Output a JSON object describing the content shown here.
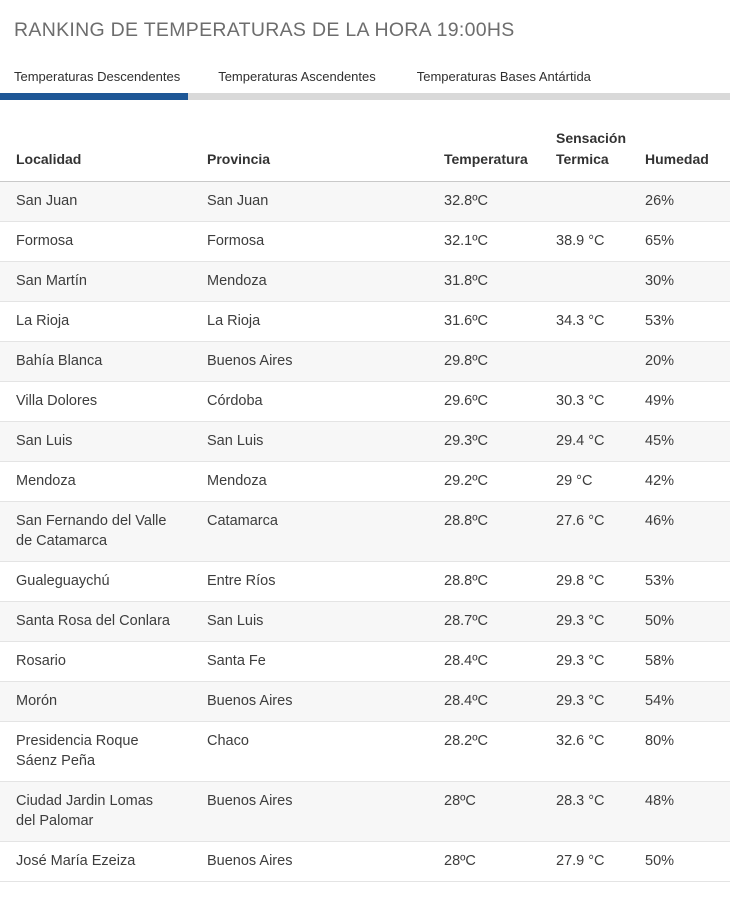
{
  "header": {
    "title": "RANKING DE TEMPERATURAS DE LA HORA 19:00HS"
  },
  "tabs": [
    {
      "label": "Temperaturas Descendentes",
      "active": true
    },
    {
      "label": "Temperaturas Ascendentes",
      "active": false
    },
    {
      "label": "Temperaturas Bases Antártida",
      "active": false
    }
  ],
  "colors": {
    "accent": "#1e5796",
    "tab_track": "#d9d9d9",
    "row_stripe": "#f7f7f7"
  },
  "table": {
    "columns": [
      "Localidad",
      "Provincia",
      "Temperatura",
      "Sensación\nTermica",
      "Humedad"
    ],
    "rows": [
      {
        "localidad": "San Juan",
        "provincia": "San Juan",
        "temperatura": "32.8ºC",
        "sensacion": "",
        "humedad": "26%"
      },
      {
        "localidad": "Formosa",
        "provincia": "Formosa",
        "temperatura": "32.1ºC",
        "sensacion": "38.9 °C",
        "humedad": "65%"
      },
      {
        "localidad": "San Martín",
        "provincia": "Mendoza",
        "temperatura": "31.8ºC",
        "sensacion": "",
        "humedad": "30%"
      },
      {
        "localidad": "La Rioja",
        "provincia": "La Rioja",
        "temperatura": "31.6ºC",
        "sensacion": "34.3 °C",
        "humedad": "53%"
      },
      {
        "localidad": "Bahía Blanca",
        "provincia": "Buenos Aires",
        "temperatura": "29.8ºC",
        "sensacion": "",
        "humedad": "20%"
      },
      {
        "localidad": "Villa Dolores",
        "provincia": "Córdoba",
        "temperatura": "29.6ºC",
        "sensacion": "30.3 °C",
        "humedad": "49%"
      },
      {
        "localidad": "San Luis",
        "provincia": "San Luis",
        "temperatura": "29.3ºC",
        "sensacion": "29.4 °C",
        "humedad": "45%"
      },
      {
        "localidad": "Mendoza",
        "provincia": "Mendoza",
        "temperatura": "29.2ºC",
        "sensacion": "29 °C",
        "humedad": "42%"
      },
      {
        "localidad": "San Fernando del Valle\nde Catamarca",
        "provincia": "Catamarca",
        "temperatura": "28.8ºC",
        "sensacion": "27.6 °C",
        "humedad": "46%"
      },
      {
        "localidad": "Gualeguaychú",
        "provincia": "Entre Ríos",
        "temperatura": "28.8ºC",
        "sensacion": "29.8 °C",
        "humedad": "53%"
      },
      {
        "localidad": "Santa Rosa del Conlara",
        "provincia": "San Luis",
        "temperatura": "28.7ºC",
        "sensacion": "29.3 °C",
        "humedad": "50%"
      },
      {
        "localidad": "Rosario",
        "provincia": "Santa Fe",
        "temperatura": "28.4ºC",
        "sensacion": "29.3 °C",
        "humedad": "58%"
      },
      {
        "localidad": "Morón",
        "provincia": "Buenos Aires",
        "temperatura": "28.4ºC",
        "sensacion": "29.3 °C",
        "humedad": "54%"
      },
      {
        "localidad": "Presidencia Roque\nSáenz Peña",
        "provincia": "Chaco",
        "temperatura": "28.2ºC",
        "sensacion": "32.6 °C",
        "humedad": "80%"
      },
      {
        "localidad": "Ciudad Jardin Lomas\ndel Palomar",
        "provincia": "Buenos Aires",
        "temperatura": "28ºC",
        "sensacion": "28.3 °C",
        "humedad": "48%"
      },
      {
        "localidad": "José María Ezeiza",
        "provincia": "Buenos Aires",
        "temperatura": "28ºC",
        "sensacion": "27.9 °C",
        "humedad": "50%"
      }
    ]
  }
}
